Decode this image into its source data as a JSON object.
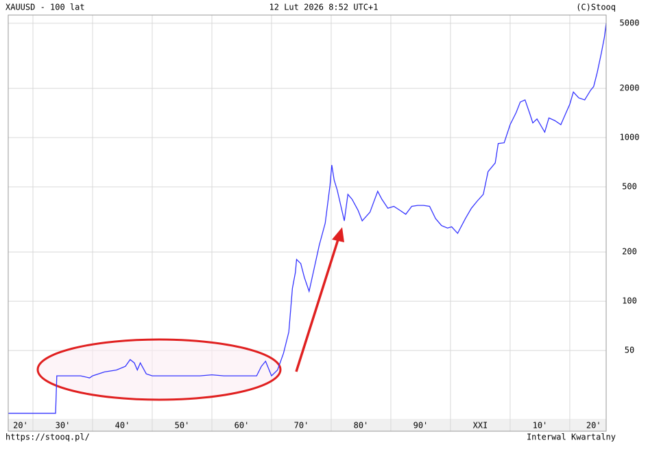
{
  "chart_data": {
    "type": "line",
    "title": "XAUUSD - 100 lat",
    "subtitle": "12 Lut 2026 8:52 UTC+1",
    "copyright": "(C)Stooq",
    "source": "https://stooq.pl/",
    "interval": "Interwal Kwartalny",
    "log_scale": true,
    "grid": true,
    "xlim": [
      1925.86,
      2026.1
    ],
    "ylim": [
      19.1,
      5610
    ],
    "xgrid": [
      1930,
      1940,
      1950,
      1960,
      1970,
      1980,
      1990,
      2000,
      2010,
      2020
    ],
    "xticks": [
      {
        "value": 1925,
        "label": "20'"
      },
      {
        "value": 1935,
        "label": "30'"
      },
      {
        "value": 1945,
        "label": "40'"
      },
      {
        "value": 1955,
        "label": "50'"
      },
      {
        "value": 1965,
        "label": "60'"
      },
      {
        "value": 1975,
        "label": "70'"
      },
      {
        "value": 1985,
        "label": "80'"
      },
      {
        "value": 1995,
        "label": "90'"
      },
      {
        "value": 2005,
        "label": "XXI"
      },
      {
        "value": 2015,
        "label": "10'"
      },
      {
        "value": 2024,
        "label": "20'"
      }
    ],
    "yticks": [
      50,
      100,
      200,
      500,
      1000,
      2000,
      5000
    ],
    "series": [
      {
        "name": "XAUUSD",
        "color": "#3333ff",
        "x": [
          1925.9,
          1933.8,
          1934.0,
          1936,
          1938,
          1939.5,
          1940,
          1942,
          1944,
          1945.5,
          1946.3,
          1947,
          1947.5,
          1948,
          1949,
          1950,
          1952,
          1954,
          1956,
          1958,
          1960,
          1962,
          1964,
          1966,
          1967.5,
          1968.3,
          1969,
          1970,
          1971,
          1972,
          1972.9,
          1973.5,
          1974.0,
          1974.2,
          1974.9,
          1975.5,
          1976.3,
          1977,
          1978,
          1979,
          1979.8,
          1980.1,
          1980.5,
          1981,
          1982.2,
          1982.8,
          1983.5,
          1984.5,
          1985.2,
          1986.5,
          1987.8,
          1988.5,
          1989.5,
          1990.5,
          1991.5,
          1992.5,
          1993.5,
          1994.5,
          1995.5,
          1996.5,
          1997.5,
          1998.5,
          1999.5,
          2000.2,
          2001.2,
          2002.5,
          2003.5,
          2004.5,
          2005.5,
          2006.3,
          2007.5,
          2008.0,
          2009,
          2010,
          2011.0,
          2011.7,
          2012.5,
          2013.3,
          2013.8,
          2014.5,
          2015.8,
          2016.5,
          2017.5,
          2018.5,
          2019.3,
          2020.0,
          2020.6,
          2021.5,
          2022.5,
          2023.5,
          2024.0,
          2024.6,
          2025.3,
          2025.8,
          2026.1
        ],
        "values": [
          20.67,
          20.67,
          35,
          35,
          35,
          34,
          35,
          37,
          38,
          40,
          44,
          42,
          38,
          42,
          36,
          35,
          35,
          35,
          35,
          35,
          35.5,
          35,
          35,
          35,
          35,
          40,
          43,
          35,
          38,
          48,
          65,
          120,
          150,
          180,
          170,
          140,
          115,
          150,
          220,
          300,
          510,
          680,
          550,
          480,
          310,
          450,
          420,
          360,
          310,
          350,
          470,
          420,
          370,
          380,
          360,
          340,
          380,
          385,
          385,
          380,
          320,
          290,
          280,
          285,
          260,
          320,
          370,
          410,
          450,
          620,
          700,
          920,
          930,
          1200,
          1420,
          1650,
          1700,
          1400,
          1230,
          1300,
          1080,
          1320,
          1270,
          1200,
          1400,
          1600,
          1900,
          1750,
          1700,
          1950,
          2050,
          2500,
          3300,
          4100,
          5000
        ]
      }
    ]
  }
}
